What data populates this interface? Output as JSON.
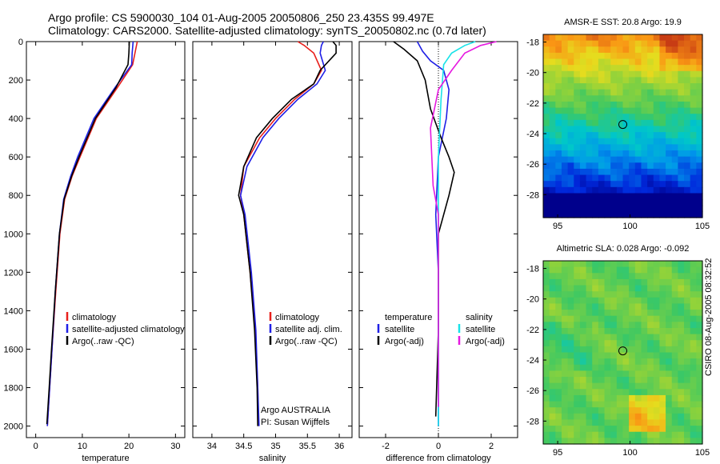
{
  "header": {
    "line1": "Argo profile: CS 5900030_104 01-Aug-2005 20050806_250 23.435S 99.497E",
    "line2": "Climatology: CARS2000. Satellite-adjusted climatology: synTS_20050802.nc (0.7d later)"
  },
  "credit": "CSIRO 08-Aug-2005 08:32:52",
  "colors": {
    "climatology": "#e8201c",
    "satellite": "#1f1fe6",
    "argo": "#000000",
    "satellite_salinity": "#19e3e8",
    "argo_adj_salinity": "#e619e0"
  },
  "chart_data": [
    {
      "type": "line",
      "xlabel": "temperature",
      "xlim": [
        -2,
        32
      ],
      "xticks": [
        0,
        10,
        20,
        30
      ],
      "ylim": [
        2060,
        0
      ],
      "yticks": [
        0,
        200,
        400,
        600,
        800,
        1000,
        1200,
        1400,
        1600,
        1800,
        2000
      ],
      "ylabel": "",
      "legend": [
        "climatology",
        "satellite-adjusted climatology",
        "Argo(..raw -QC)"
      ],
      "series": [
        {
          "name": "climatology",
          "color": "red",
          "x": [
            21.8,
            21.3,
            20.8,
            17.5,
            13.0,
            9.5,
            7.8,
            6.2,
            5.2,
            4.3,
            3.5,
            3.0,
            2.5
          ],
          "y": [
            0,
            60,
            120,
            240,
            400,
            600,
            700,
            820,
            1000,
            1300,
            1600,
            1800,
            2000
          ]
        },
        {
          "name": "satellite-adjusted climatology",
          "color": "blue",
          "x": [
            20.9,
            20.7,
            20.6,
            17.0,
            12.5,
            9.0,
            7.5,
            6.0,
            5.1,
            4.2,
            3.5,
            3.0,
            2.5
          ],
          "y": [
            0,
            60,
            120,
            240,
            400,
            600,
            700,
            820,
            1000,
            1300,
            1600,
            1800,
            2000
          ]
        },
        {
          "name": "Argo(..raw -QC)",
          "color": "black",
          "x": [
            20.1,
            20.0,
            19.8,
            17.2,
            12.8,
            9.3,
            7.7,
            6.1,
            5.1,
            4.2,
            3.4,
            2.9,
            2.4
          ],
          "y": [
            0,
            60,
            120,
            240,
            400,
            600,
            700,
            820,
            1000,
            1300,
            1600,
            1800,
            1990
          ]
        }
      ]
    },
    {
      "type": "line",
      "xlabel": "salinity",
      "xlim": [
        33.7,
        36.2
      ],
      "xticks": [
        34,
        34.5,
        35,
        35.5,
        36
      ],
      "ylim": [
        2060,
        0
      ],
      "legend": [
        "climatology",
        "satellite adj. clim.",
        "Argo(..raw -QC)"
      ],
      "annotations": [
        "Argo AUSTRALIA",
        "PI: Susan Wijffels"
      ],
      "series": [
        {
          "name": "climatology",
          "color": "red",
          "x": [
            35.35,
            35.45,
            35.6,
            35.72,
            35.6,
            35.3,
            35.0,
            34.75,
            34.5,
            34.45,
            34.5,
            34.6,
            34.68,
            34.72,
            34.73
          ],
          "y": [
            0,
            20,
            60,
            150,
            220,
            300,
            400,
            500,
            650,
            800,
            900,
            1200,
            1500,
            1800,
            2000
          ]
        },
        {
          "name": "satellite adj. clim.",
          "color": "blue",
          "x": [
            35.75,
            35.72,
            35.7,
            35.78,
            35.65,
            35.35,
            35.05,
            34.8,
            34.55,
            34.45,
            34.52,
            34.62,
            34.69,
            34.72,
            34.74
          ],
          "y": [
            0,
            20,
            60,
            150,
            220,
            300,
            400,
            500,
            650,
            800,
            900,
            1200,
            1500,
            1800,
            2000
          ]
        },
        {
          "name": "Argo(..raw -QC)",
          "color": "black",
          "x": [
            35.9,
            35.95,
            35.95,
            35.7,
            35.6,
            35.25,
            34.95,
            34.7,
            34.5,
            34.42,
            34.5,
            34.6,
            34.67,
            34.71,
            34.72
          ],
          "y": [
            0,
            20,
            60,
            150,
            220,
            300,
            400,
            500,
            650,
            800,
            900,
            1200,
            1500,
            1800,
            2000
          ]
        }
      ]
    },
    {
      "type": "line",
      "xlabel": "difference from climatology",
      "xlim": [
        -3,
        3
      ],
      "xticks": [
        -2,
        0,
        2
      ],
      "ylim": [
        2060,
        0
      ],
      "legend": [
        "temperature",
        "satellite",
        "Argo(-adj)",
        "salinity",
        "satellite",
        "Argo(-adj)"
      ],
      "series": [
        {
          "name": "satellite",
          "color": "blue",
          "x": [
            -0.8,
            -0.6,
            -0.3,
            0.2,
            0.4,
            0.3,
            0.0,
            -0.1,
            0.0,
            0.0,
            0.0,
            0.0
          ],
          "y": [
            0,
            50,
            100,
            150,
            250,
            400,
            600,
            900,
            1200,
            1500,
            1800,
            2000
          ]
        },
        {
          "name": "Argo(-adj)",
          "color": "black",
          "x": [
            -1.7,
            -1.3,
            -0.8,
            -0.5,
            -0.3,
            0.1,
            0.4,
            0.6,
            0.4,
            0.0,
            0.0,
            -0.1
          ],
          "y": [
            0,
            40,
            100,
            200,
            350,
            500,
            600,
            680,
            800,
            1000,
            1500,
            1950
          ]
        },
        {
          "name": "satellite",
          "color": "cyan",
          "x": [
            1.4,
            1.0,
            0.5,
            0.2,
            0.1,
            0.0,
            0.0,
            0.0,
            0.0,
            0.0
          ],
          "y": [
            0,
            20,
            60,
            120,
            300,
            600,
            900,
            1200,
            1600,
            2000
          ]
        },
        {
          "name": "Argo(-adj)",
          "color": "magenta",
          "x": [
            2.2,
            1.6,
            1.0,
            0.5,
            0.0,
            -0.3,
            -0.2,
            0.0,
            0.0,
            0.0
          ],
          "y": [
            0,
            20,
            60,
            150,
            250,
            450,
            750,
            900,
            1300,
            1900
          ]
        }
      ]
    },
    {
      "type": "heatmap",
      "title": "AMSR-E SST: 20.8 Argo: 19.9",
      "xlim": [
        94,
        105
      ],
      "xticks": [
        95,
        100,
        105
      ],
      "ylim": [
        -29.5,
        -17.5
      ],
      "yticks": [
        -18,
        -20,
        -22,
        -24,
        -26,
        -28
      ],
      "marker": {
        "lon": 99.5,
        "lat": -23.4
      }
    },
    {
      "type": "heatmap",
      "title": "Altimetric SLA: 0.028 Argo: -0.092",
      "xlim": [
        94,
        105
      ],
      "xticks": [
        95,
        100,
        105
      ],
      "ylim": [
        -29.5,
        -17.5
      ],
      "yticks": [
        -18,
        -20,
        -22,
        -24,
        -26,
        -28
      ],
      "marker": {
        "lon": 99.5,
        "lat": -23.4
      }
    }
  ]
}
